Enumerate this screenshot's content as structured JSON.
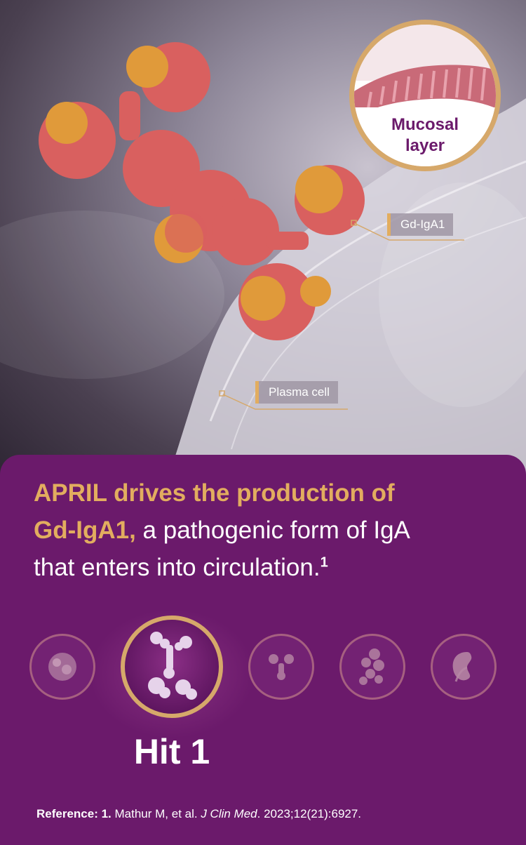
{
  "hero": {
    "lens_label_line1": "Mucosal",
    "lens_label_line2": "layer",
    "callouts": {
      "gd_iga1": "Gd-IgA1",
      "plasma_cell": "Plasma cell"
    }
  },
  "headline": {
    "accent_line1": "APRIL drives the production of",
    "accent_line2": "Gd-IgA1,",
    "rest_line2": " a pathogenic form of IgA",
    "line3": "that enters into circulation.",
    "superscript": "1"
  },
  "hits": {
    "items": [
      {
        "icon": "cell-icon",
        "active": false
      },
      {
        "icon": "antibody-chain-icon",
        "active": true
      },
      {
        "icon": "antibody-icon",
        "active": false
      },
      {
        "icon": "immune-complex-icon",
        "active": false
      },
      {
        "icon": "kidney-icon",
        "active": false
      }
    ],
    "active_label": "Hit 1"
  },
  "reference": {
    "prefix": "Reference: 1.",
    "authors": " Mathur M, et al. ",
    "journal": "J Clin Med",
    "citation": ". 2023;12(21):6927."
  },
  "colors": {
    "panel": "#6b1a6b",
    "accent": "#e2ad5f",
    "gold_ring": "#d6a86a",
    "molecule": "#d9605f",
    "molecule_highlight": "#e09a3a"
  }
}
